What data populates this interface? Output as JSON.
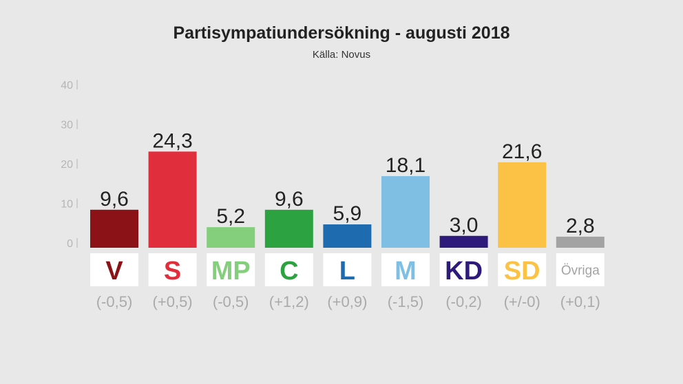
{
  "chart_data": {
    "type": "bar",
    "title": "Partisympatiundersökning - augusti 2018",
    "subtitle": "Källa: Novus",
    "xlabel": "",
    "ylabel": "",
    "ylim": [
      0,
      40
    ],
    "yticks": [
      "0",
      "10",
      "20",
      "30",
      "40"
    ],
    "grid": false,
    "categories": [
      "V",
      "S",
      "MP",
      "C",
      "L",
      "M",
      "KD",
      "SD",
      "Övriga"
    ],
    "values": [
      9.6,
      24.3,
      5.2,
      9.6,
      5.9,
      18.1,
      3.0,
      21.6,
      2.8
    ],
    "value_labels": [
      "9,6",
      "24,3",
      "5,2",
      "9,6",
      "5,9",
      "18,1",
      "3,0",
      "21,6",
      "2,8"
    ],
    "changes": [
      "(-0,5)",
      "(+0,5)",
      "(-0,5)",
      "(+1,2)",
      "(+0,9)",
      "(-1,5)",
      "(-0,2)",
      "(+/-0)",
      "(+0,1)"
    ],
    "colors": [
      "#8b1216",
      "#e02e3d",
      "#83cf7c",
      "#2ca240",
      "#1f6bb0",
      "#7fbfe3",
      "#2e1a7b",
      "#fbc246",
      "#a3a3a3"
    ]
  }
}
